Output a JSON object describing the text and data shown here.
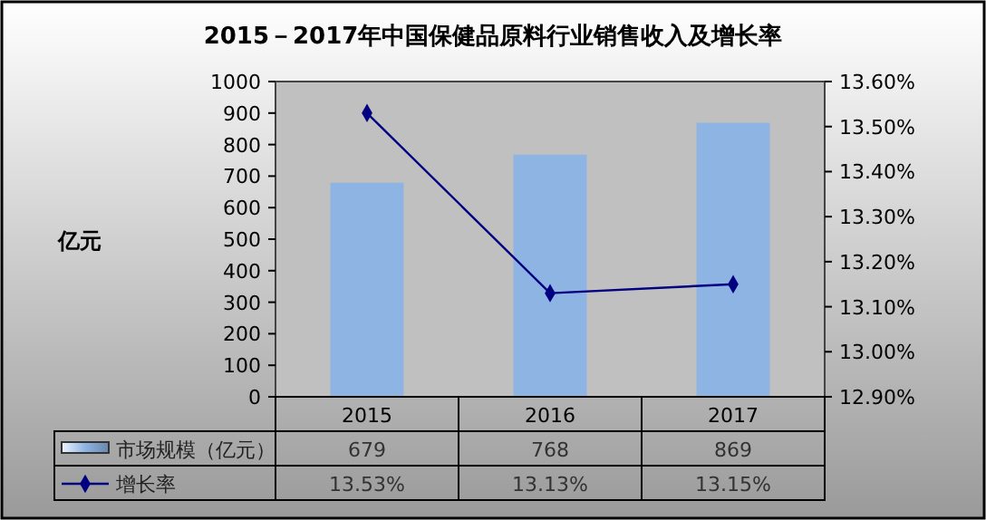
{
  "chart_data": {
    "type": "bar",
    "title": "2015－2017年中国保健品原料行业销售收入及增长率",
    "ylabel": "亿元",
    "categories": [
      "2015",
      "2016",
      "2017"
    ],
    "series": [
      {
        "name": "市场规模（亿元）",
        "color": "#8db4e2",
        "values": [
          679,
          768,
          869
        ],
        "value_labels": [
          "679",
          "768",
          "869"
        ]
      },
      {
        "name": "增长率",
        "type": "line",
        "axis": "y2",
        "color": "#000080",
        "marker": "diamond",
        "values": [
          13.53,
          13.13,
          13.15
        ],
        "value_labels": [
          "13.53%",
          "13.13%",
          "13.15%"
        ]
      }
    ],
    "ylim": [
      0,
      1000
    ],
    "yticks": [
      0,
      100,
      200,
      300,
      400,
      500,
      600,
      700,
      800,
      900,
      1000
    ],
    "y2lim": [
      12.9,
      13.6
    ],
    "y2ticks": [
      {
        "value": 12.9,
        "label": "12.90%"
      },
      {
        "value": 13.0,
        "label": "13.00%"
      },
      {
        "value": 13.1,
        "label": "13.10%"
      },
      {
        "value": 13.2,
        "label": "13.20%"
      },
      {
        "value": 13.3,
        "label": "13.30%"
      },
      {
        "value": 13.4,
        "label": "13.40%"
      },
      {
        "value": 13.5,
        "label": "13.50%"
      },
      {
        "value": 13.6,
        "label": "13.60%"
      }
    ],
    "legend": "bottom left",
    "grid": false
  }
}
